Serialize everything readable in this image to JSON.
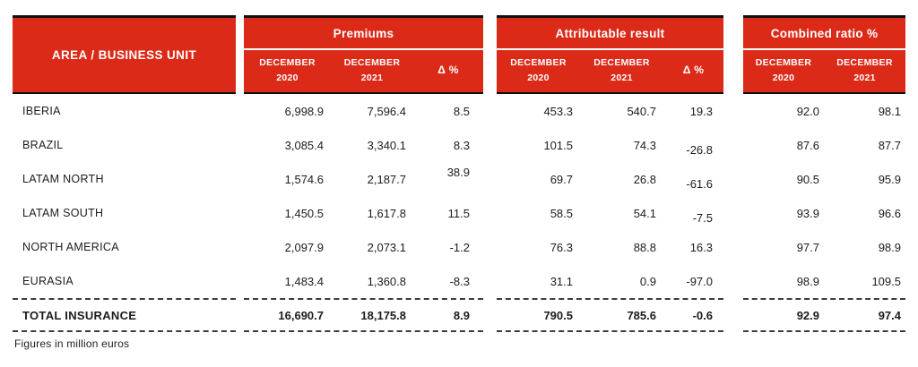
{
  "colors": {
    "header_red": "#DB2A18",
    "header_text": "#FFFFFF",
    "body_text": "#1C1C1C",
    "header_border": "#101010"
  },
  "chart_data": {
    "type": "table",
    "unit_note": "Figures in million euros",
    "area_header": "AREA / BUSINESS UNIT",
    "groups": [
      {
        "title": "Premiums",
        "columns": [
          {
            "line1": "DECEMBER",
            "line2": "2020"
          },
          {
            "line1": "DECEMBER",
            "line2": "2021"
          },
          {
            "line1": "Δ %",
            "line2": ""
          }
        ]
      },
      {
        "title": "Attributable result",
        "columns": [
          {
            "line1": "DECEMBER",
            "line2": "2020"
          },
          {
            "line1": "DECEMBER",
            "line2": "2021"
          },
          {
            "line1": "Δ %",
            "line2": ""
          }
        ]
      },
      {
        "title": "Combined ratio %",
        "columns": [
          {
            "line1": "DECEMBER",
            "line2": "2020"
          },
          {
            "line1": "DECEMBER",
            "line2": "2021"
          }
        ]
      }
    ],
    "rows": [
      {
        "area": "IBERIA",
        "premiums": [
          "6,998.9",
          "7,596.4",
          "8.5"
        ],
        "attributable": [
          "453.3",
          "540.7",
          "19.3"
        ],
        "combined": [
          "92.0",
          "98.1"
        ]
      },
      {
        "area": "BRAZIL",
        "premiums": [
          "3,085.4",
          "3,340.1",
          "8.3"
        ],
        "attributable": [
          "101.5",
          "74.3",
          "-26.8"
        ],
        "combined": [
          "87.6",
          "87.7"
        ]
      },
      {
        "area": "LATAM NORTH",
        "premiums": [
          "1,574.6",
          "2,187.7",
          "38.9"
        ],
        "attributable": [
          "69.7",
          "26.8",
          "-61.6"
        ],
        "combined": [
          "90.5",
          "95.9"
        ]
      },
      {
        "area": "LATAM SOUTH",
        "premiums": [
          "1,450.5",
          "1,617.8",
          "11.5"
        ],
        "attributable": [
          "58.5",
          "54.1",
          "-7.5"
        ],
        "combined": [
          "93.9",
          "96.6"
        ]
      },
      {
        "area": "NORTH AMERICA",
        "premiums": [
          "2,097.9",
          "2,073.1",
          "-1.2"
        ],
        "attributable": [
          "76.3",
          "88.8",
          "16.3"
        ],
        "combined": [
          "97.7",
          "98.9"
        ]
      },
      {
        "area": "EURASIA",
        "premiums": [
          "1,483.4",
          "1,360.8",
          "-8.3"
        ],
        "attributable": [
          "31.1",
          "0.9",
          "-97.0"
        ],
        "combined": [
          "98.9",
          "109.5"
        ]
      }
    ],
    "total": {
      "area": "TOTAL INSURANCE",
      "premiums": [
        "16,690.7",
        "18,175.8",
        "8.9"
      ],
      "attributable": [
        "790.5",
        "785.6",
        "-0.6"
      ],
      "combined": [
        "92.9",
        "97.4"
      ]
    }
  }
}
